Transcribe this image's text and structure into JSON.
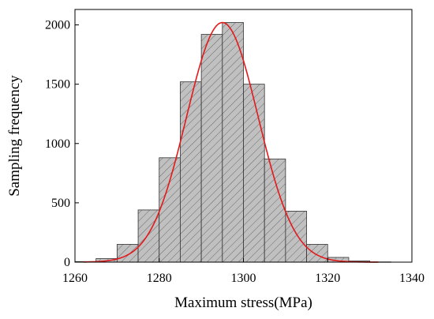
{
  "chart_data": {
    "type": "bar",
    "title": "",
    "xlabel": "Maximum stress(MPa)",
    "ylabel": "Sampling frequency",
    "xlim": [
      1260,
      1340
    ],
    "ylim": [
      0,
      2130
    ],
    "x_ticks": [
      1260,
      1280,
      1300,
      1320,
      1340
    ],
    "y_ticks": [
      0,
      500,
      1000,
      1500,
      2000
    ],
    "bin_width": 5,
    "bins": [
      {
        "x0": 1260,
        "x1": 1265,
        "value": 5
      },
      {
        "x0": 1265,
        "x1": 1270,
        "value": 30
      },
      {
        "x0": 1270,
        "x1": 1275,
        "value": 150
      },
      {
        "x0": 1275,
        "x1": 1280,
        "value": 440
      },
      {
        "x0": 1280,
        "x1": 1285,
        "value": 880
      },
      {
        "x0": 1285,
        "x1": 1290,
        "value": 1520
      },
      {
        "x0": 1290,
        "x1": 1295,
        "value": 1920
      },
      {
        "x0": 1295,
        "x1": 1300,
        "value": 2020
      },
      {
        "x0": 1300,
        "x1": 1305,
        "value": 1500
      },
      {
        "x0": 1305,
        "x1": 1310,
        "value": 870
      },
      {
        "x0": 1310,
        "x1": 1315,
        "value": 430
      },
      {
        "x0": 1315,
        "x1": 1320,
        "value": 150
      },
      {
        "x0": 1320,
        "x1": 1325,
        "value": 40
      },
      {
        "x0": 1325,
        "x1": 1330,
        "value": 10
      },
      {
        "x0": 1330,
        "x1": 1335,
        "value": 2
      }
    ],
    "fit_curve": {
      "type": "normal",
      "mean": 1295,
      "std_dev": 8.5,
      "peak": 2020,
      "color": "#e31a1c"
    },
    "bar_fill": "#c0c0c0",
    "bar_hatch": "diagonal",
    "grid": false,
    "legend": "none"
  }
}
